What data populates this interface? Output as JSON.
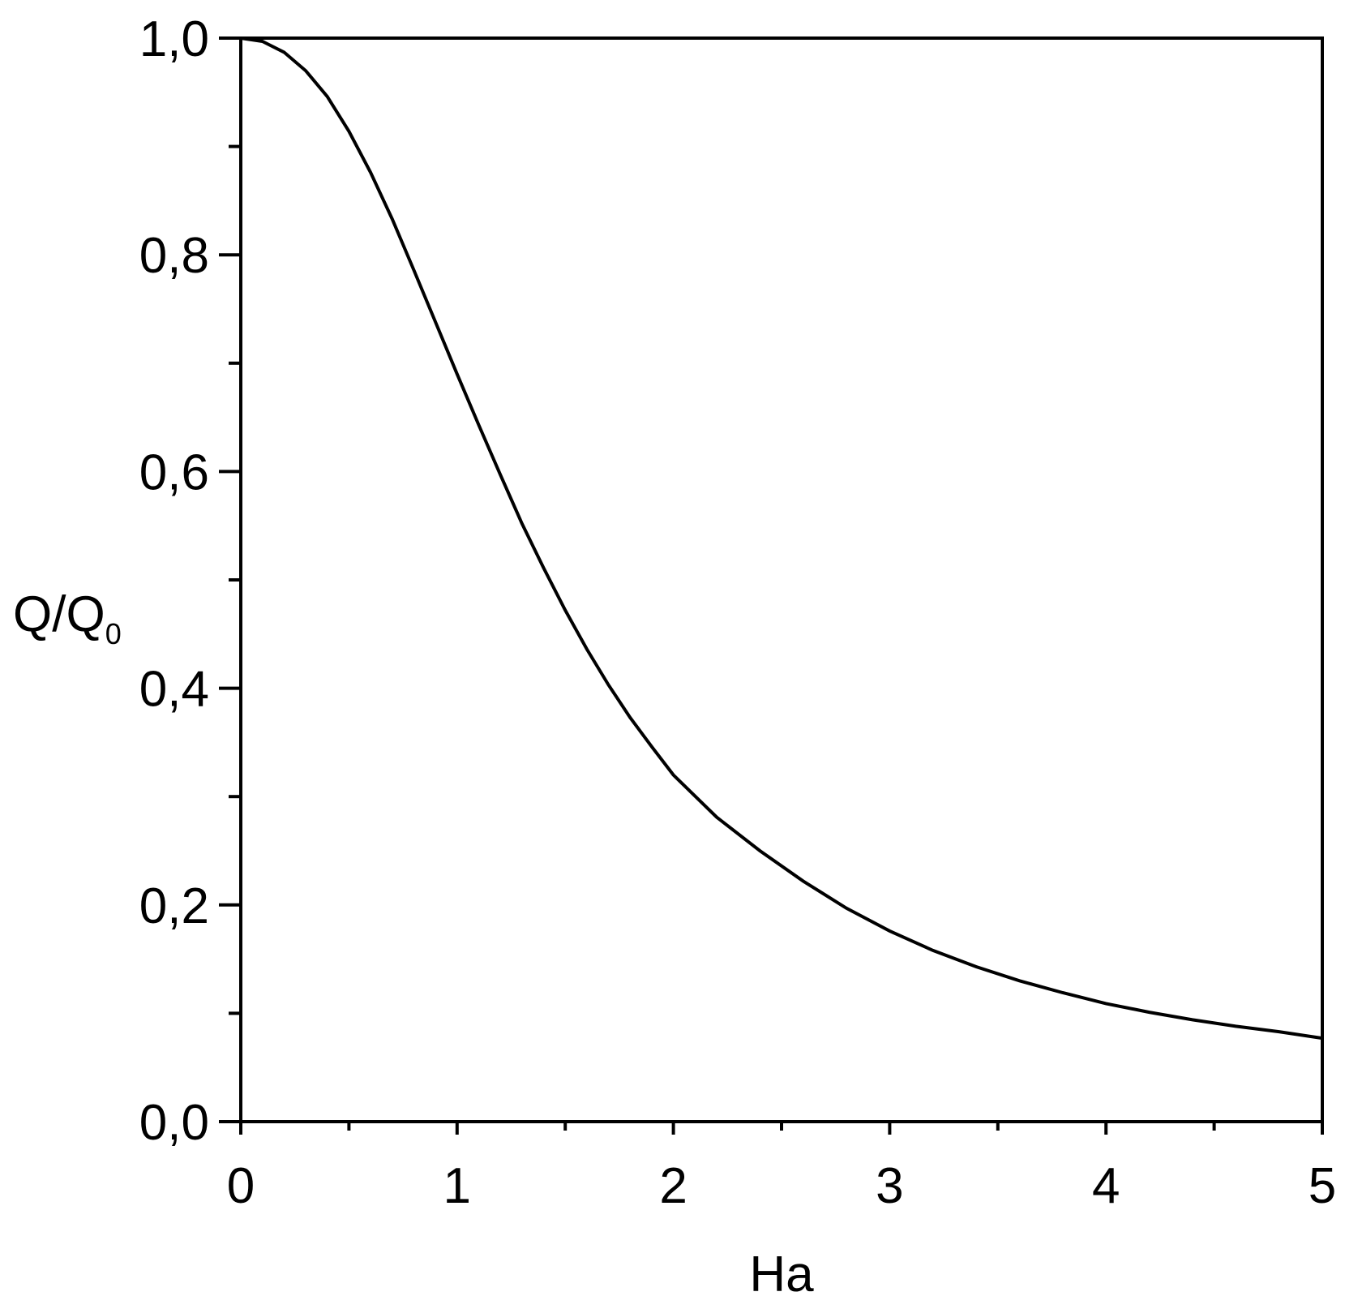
{
  "chart_data": {
    "type": "line",
    "title": "",
    "xlabel": "Ha",
    "ylabel": "Q/Q",
    "ylabel_subscript": "0",
    "xlim": [
      0,
      5
    ],
    "ylim": [
      0,
      1
    ],
    "x_ticks": [
      0,
      1,
      2,
      3,
      4,
      5
    ],
    "x_tick_labels": [
      "0",
      "1",
      "2",
      "3",
      "4",
      "5"
    ],
    "x_minor_ticks": [
      0.5,
      1.5,
      2.5,
      3.5,
      4.5
    ],
    "y_ticks": [
      0,
      0.2,
      0.4,
      0.6,
      0.8,
      1.0
    ],
    "y_tick_labels": [
      "0,0",
      "0,2",
      "0,4",
      "0,6",
      "0,8",
      "1,0"
    ],
    "y_minor_ticks": [
      0.1,
      0.3,
      0.5,
      0.7,
      0.9
    ],
    "grid": false,
    "line_color": "#000000",
    "series": [
      {
        "x": [
          0,
          0.1,
          0.2,
          0.3,
          0.4,
          0.5,
          0.6,
          0.7,
          0.8,
          0.9,
          1.0,
          1.1,
          1.2,
          1.3,
          1.4,
          1.5,
          1.6,
          1.7,
          1.8,
          1.9,
          2.0,
          2.2,
          2.4,
          2.6,
          2.8,
          3.0,
          3.2,
          3.4,
          3.6,
          3.8,
          4.0,
          4.2,
          4.4,
          4.6,
          4.8,
          5.0
        ],
        "values": [
          1.0,
          0.997,
          0.987,
          0.97,
          0.946,
          0.914,
          0.876,
          0.833,
          0.786,
          0.738,
          0.69,
          0.643,
          0.597,
          0.552,
          0.511,
          0.472,
          0.436,
          0.403,
          0.373,
          0.346,
          0.32,
          0.281,
          0.25,
          0.222,
          0.197,
          0.176,
          0.158,
          0.143,
          0.13,
          0.119,
          0.109,
          0.101,
          0.094,
          0.088,
          0.083,
          0.077
        ]
      }
    ]
  }
}
